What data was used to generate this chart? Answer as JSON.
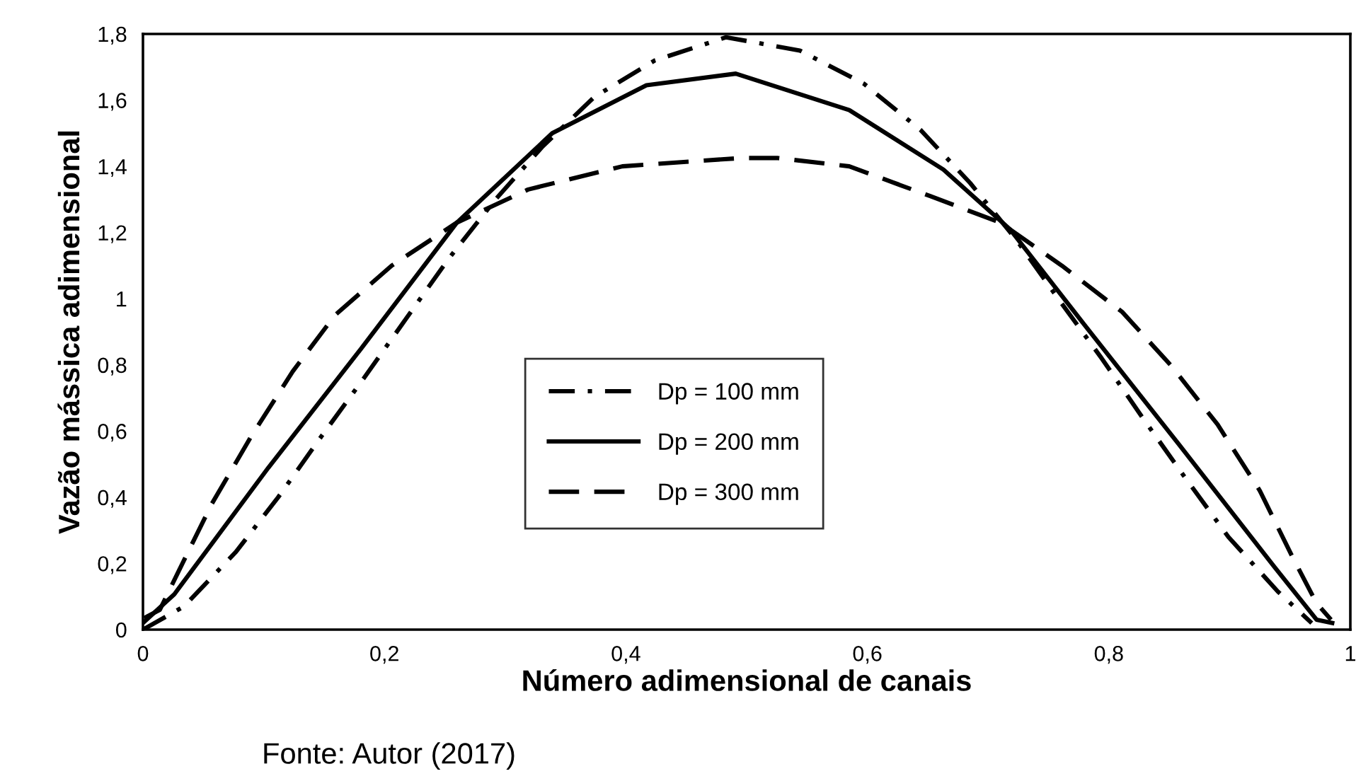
{
  "chart_data": {
    "type": "line",
    "xlabel": "Número adimensional de canais",
    "ylabel": "Vazão mássica adimensional",
    "annotations": [
      "Fonte: Autor (2017)"
    ],
    "xlim": [
      0,
      1
    ],
    "ylim": [
      0,
      1.8
    ],
    "xticks": [
      0,
      {
        "value": 0.2,
        "label": "0,2"
      },
      {
        "value": 0.4,
        "label": "0,4"
      },
      {
        "value": 0.6,
        "label": "0,6"
      },
      {
        "value": 0.8,
        "label": "0,8"
      },
      1
    ],
    "yticks": [
      0,
      {
        "value": 0.2,
        "label": "0,2"
      },
      {
        "value": 0.4,
        "label": "0,4"
      },
      {
        "value": 0.6,
        "label": "0,6"
      },
      {
        "value": 0.8,
        "label": "0,8"
      },
      1,
      {
        "value": 1.2,
        "label": "1,2"
      },
      {
        "value": 1.4,
        "label": "1,4"
      },
      {
        "value": 1.6,
        "label": "1,6"
      },
      {
        "value": 1.8,
        "label": "1,8"
      }
    ],
    "grid": false,
    "legend": "bottom",
    "marker": "none",
    "series": [
      {
        "name": "Dp = 100 mm",
        "color": "#000000",
        "line_style": "dashdot",
        "x": [
          0,
          0.034,
          0.077,
          0.112,
          0.148,
          0.183,
          0.218,
          0.253,
          0.292,
          0.331,
          0.374,
          0.424,
          0.483,
          0.544,
          0.597,
          0.644,
          0.685,
          0.723,
          0.758,
          0.794,
          0.828,
          0.863,
          0.899,
          0.94,
          0.968
        ],
        "values": [
          0,
          0.07,
          0.235,
          0.4,
          0.585,
          0.76,
          0.94,
          1.12,
          1.3,
          1.46,
          1.61,
          1.72,
          1.79,
          1.75,
          1.65,
          1.51,
          1.35,
          1.18,
          1.0,
          0.82,
          0.64,
          0.46,
          0.28,
          0.115,
          0.02
        ]
      },
      {
        "name": "Dp = 200 mm",
        "color": "#000000",
        "line_style": "solid",
        "x": [
          0,
          0.026,
          0.104,
          0.183,
          0.26,
          0.339,
          0.417,
          0.491,
          0.585,
          0.663,
          0.718,
          0.78,
          0.858,
          0.937,
          0.972,
          0.985
        ],
        "values": [
          0.02,
          0.107,
          0.49,
          0.86,
          1.23,
          1.5,
          1.645,
          1.68,
          1.57,
          1.39,
          1.21,
          0.92,
          0.56,
          0.19,
          0.03,
          0.02
        ]
      },
      {
        "name": "Dp = 300 mm",
        "color": "#000000",
        "line_style": "dashed",
        "x": [
          0.001,
          0.014,
          0.03,
          0.057,
          0.089,
          0.124,
          0.159,
          0.206,
          0.26,
          0.319,
          0.397,
          0.495,
          0.526,
          0.585,
          0.652,
          0.71,
          0.761,
          0.811,
          0.851,
          0.89,
          0.925,
          0.952,
          0.972,
          0.984
        ],
        "values": [
          0.035,
          0.06,
          0.18,
          0.38,
          0.58,
          0.78,
          0.95,
          1.1,
          1.23,
          1.33,
          1.4,
          1.425,
          1.425,
          1.4,
          1.31,
          1.23,
          1.1,
          0.96,
          0.8,
          0.62,
          0.42,
          0.22,
          0.08,
          0.03
        ]
      }
    ]
  }
}
